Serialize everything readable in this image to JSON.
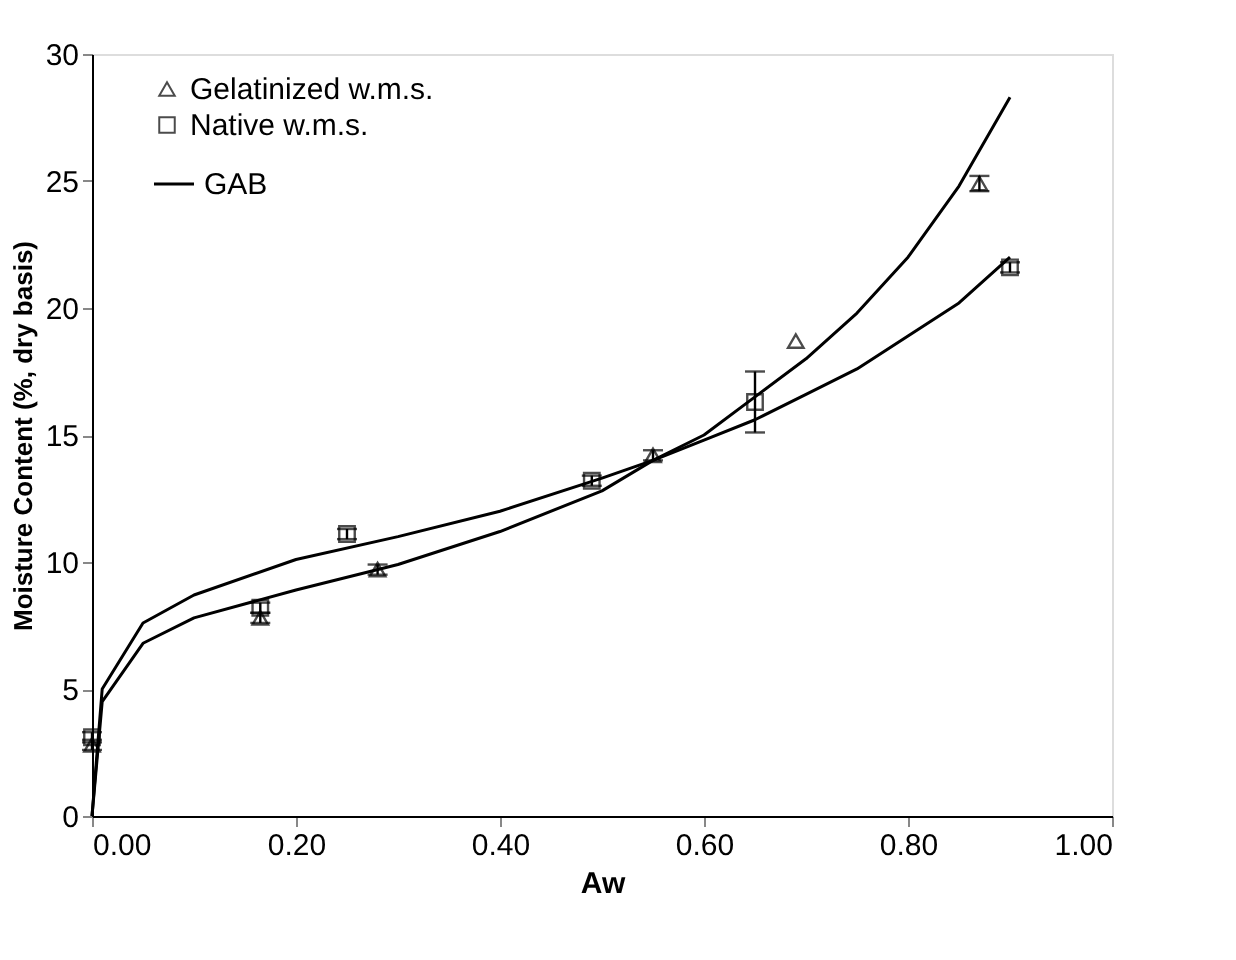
{
  "chart_data": {
    "type": "scatter",
    "xlabel": "Aw",
    "ylabel": "Moisture Content (%, dry basis)",
    "xlim": [
      0,
      1
    ],
    "xticks": [
      {
        "value": 0,
        "label": "0.00"
      },
      {
        "value": 0.2,
        "label": "0.20"
      },
      {
        "value": 0.4,
        "label": "0.40"
      },
      {
        "value": 0.6,
        "label": "0.60"
      },
      {
        "value": 0.8,
        "label": "0.80"
      },
      {
        "value": 1,
        "label": "1.00"
      }
    ],
    "ylim": [
      0,
      30
    ],
    "yticks": [
      0,
      5,
      10,
      15,
      20,
      25,
      30
    ],
    "grid": false,
    "legend": "top left",
    "series": [
      {
        "name": "Gelatinized w.m.s.",
        "marker": "triangle",
        "color": "#000000",
        "x": [
          0,
          0.165,
          0.28,
          0.55,
          0.69,
          0.87
        ],
        "values": [
          2.8,
          7.8,
          9.7,
          14.2,
          18.7,
          24.9
        ],
        "errors": [
          0.2,
          0.2,
          0.2,
          0.2,
          null,
          0.3
        ]
      },
      {
        "name": "Native w.m.s.",
        "marker": "square",
        "color": "#000000",
        "x": [
          0,
          0.165,
          0.25,
          0.49,
          0.65,
          0.9
        ],
        "values": [
          3.1,
          8.2,
          11.1,
          13.2,
          16.3,
          21.6
        ],
        "errors": [
          0.2,
          0.2,
          0.2,
          0.2,
          1.2,
          0.2
        ]
      },
      {
        "name": "GAB",
        "type": "line",
        "color": "#000000",
        "x": [
          0,
          0.01,
          0.05,
          0.1,
          0.2,
          0.3,
          0.4,
          0.5,
          0.55,
          0.6,
          0.65,
          0.7,
          0.75,
          0.8,
          0.85,
          0.9
        ],
        "values": [
          0,
          4.5,
          6.8,
          7.8,
          8.9,
          9.9,
          11.2,
          12.8,
          14,
          15,
          16.5,
          18,
          19.8,
          22,
          24.8,
          28.3
        ]
      },
      {
        "type": "line",
        "color": "#000000",
        "x": [
          0,
          0.01,
          0.05,
          0.1,
          0.2,
          0.3,
          0.4,
          0.5,
          0.55,
          0.6,
          0.65,
          0.7,
          0.75,
          0.8,
          0.85,
          0.9
        ],
        "values": [
          0,
          5,
          7.6,
          8.7,
          10.1,
          11,
          12,
          13.3,
          14,
          14.8,
          15.6,
          16.6,
          17.6,
          18.9,
          20.2,
          22
        ]
      }
    ]
  }
}
